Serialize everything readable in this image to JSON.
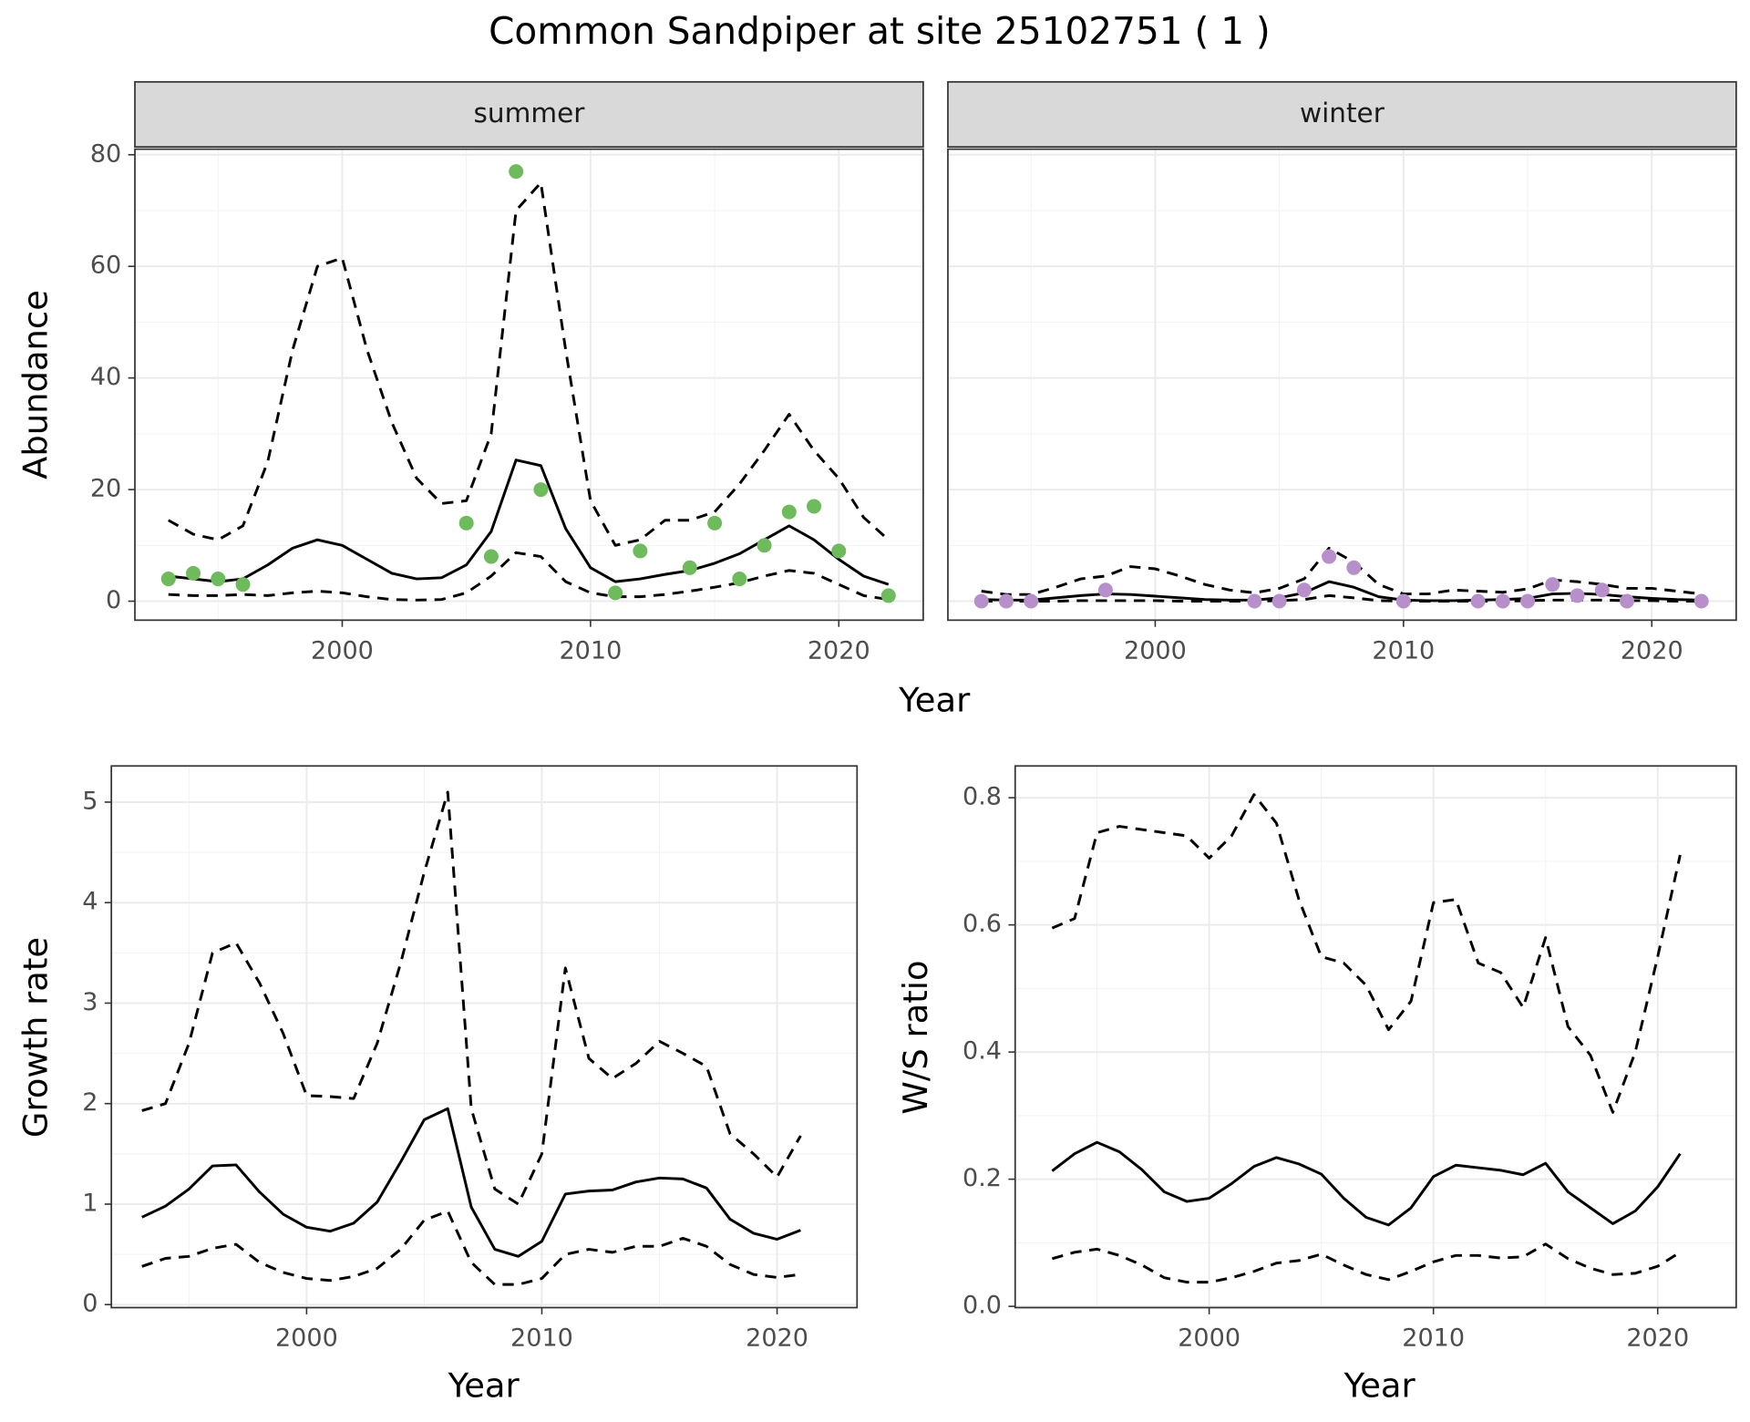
{
  "title": "Common Sandpiper at site 25102751 ( 1 )",
  "chart_data": [
    {
      "type": "line",
      "strip": "summer",
      "x_label": "Year",
      "y_label": "Abundance",
      "xlim": [
        1991.65,
        2023.4
      ],
      "ylim": [
        -3.4,
        81
      ],
      "xticks": [
        2000,
        2010,
        2020
      ],
      "yticks": [
        0,
        20,
        40,
        60,
        80
      ],
      "y_tick_labels": true,
      "grid": true,
      "minor_grid": true,
      "x": [
        1993,
        1994,
        1995,
        1996,
        1997,
        1998,
        1999,
        2000,
        2001,
        2002,
        2003,
        2004,
        2005,
        2006,
        2007,
        2008,
        2009,
        2010,
        2011,
        2012,
        2013,
        2014,
        2015,
        2016,
        2017,
        2018,
        2019,
        2020,
        2021,
        2022
      ],
      "series": [
        {
          "mark": "line",
          "linestyle": "dashed",
          "color": "#000000",
          "values": [
            14.5,
            12,
            11,
            13.5,
            25,
            45,
            60,
            61.5,
            45,
            32,
            22,
            17.5,
            18,
            30,
            70,
            75,
            45,
            18,
            10,
            11,
            14.5,
            14.5,
            16,
            21,
            27,
            33.5,
            27,
            22,
            15,
            11
          ]
        },
        {
          "mark": "line",
          "linestyle": "solid",
          "color": "#000000",
          "values": [
            4.5,
            4,
            3.5,
            4,
            6.5,
            9.5,
            11,
            10,
            7.5,
            5,
            4,
            4.2,
            6.5,
            12.5,
            25.3,
            24.3,
            13,
            6,
            3.5,
            4,
            4.8,
            5.5,
            6.8,
            8.5,
            11,
            13.5,
            11,
            7.5,
            4.5,
            3
          ]
        },
        {
          "mark": "line",
          "linestyle": "dashed",
          "color": "#000000",
          "values": [
            1.2,
            1,
            1,
            1.2,
            1,
            1.5,
            1.8,
            1.5,
            0.8,
            0.3,
            0.2,
            0.3,
            1.5,
            4.5,
            8.7,
            8,
            3.5,
            1.5,
            0.8,
            0.8,
            1.2,
            1.8,
            2.5,
            3.3,
            4.5,
            5.5,
            5,
            3,
            1,
            0.3
          ]
        },
        {
          "mark": "point",
          "color": "#6dbb5a",
          "x": [
            1993,
            1994,
            1995,
            1996,
            2005,
            2006,
            2007,
            2008,
            2011,
            2012,
            2014,
            2015,
            2016,
            2017,
            2018,
            2019,
            2020,
            2022
          ],
          "values": [
            4,
            5,
            4,
            3,
            14,
            8,
            77,
            20,
            1.5,
            9,
            6,
            14,
            4,
            10,
            16,
            17,
            9,
            1
          ]
        }
      ]
    },
    {
      "type": "line",
      "strip": "winter",
      "xlim": [
        1991.65,
        2023.4
      ],
      "ylim": [
        -3.4,
        81
      ],
      "xticks": [
        2000,
        2010,
        2020
      ],
      "yticks": [
        0,
        20,
        40,
        60,
        80
      ],
      "y_tick_labels": false,
      "grid": true,
      "minor_grid": true,
      "x": [
        1993,
        1994,
        1995,
        1996,
        1997,
        1998,
        1999,
        2000,
        2001,
        2002,
        2003,
        2004,
        2005,
        2006,
        2007,
        2008,
        2009,
        2010,
        2011,
        2012,
        2013,
        2014,
        2015,
        2016,
        2017,
        2018,
        2019,
        2020,
        2021,
        2022
      ],
      "series": [
        {
          "mark": "line",
          "linestyle": "dashed",
          "color": "#000000",
          "values": [
            1.8,
            1.2,
            1.2,
            2.5,
            4,
            4.5,
            6.2,
            5.8,
            4.5,
            3,
            2,
            1.5,
            2.3,
            4,
            9.5,
            7,
            3,
            1.3,
            1.3,
            2,
            1.8,
            1.6,
            2.2,
            3.8,
            3.5,
            3,
            2.3,
            2.3,
            1.8,
            1.3
          ]
        },
        {
          "mark": "line",
          "linestyle": "solid",
          "color": "#000000",
          "values": [
            0.3,
            0.2,
            0.2,
            0.6,
            1,
            1.3,
            1.2,
            0.9,
            0.6,
            0.3,
            0.2,
            0.2,
            0.6,
            1.5,
            3.5,
            2.5,
            0.8,
            0.2,
            0.1,
            0.1,
            0.2,
            0.3,
            0.5,
            1.3,
            1.4,
            1.2,
            0.8,
            0.5,
            0.3,
            0.2
          ]
        },
        {
          "mark": "line",
          "linestyle": "dashed",
          "color": "#000000",
          "values": [
            0,
            0,
            0,
            0,
            0.1,
            0.1,
            0.1,
            0.1,
            0,
            0,
            0,
            0,
            0.1,
            0.3,
            1,
            0.6,
            0.1,
            0,
            0,
            0,
            0,
            0,
            0.1,
            0.2,
            0.2,
            0.2,
            0.1,
            0.1,
            0,
            0
          ]
        },
        {
          "mark": "point",
          "color": "#b78fcb",
          "x": [
            1993,
            1994,
            1995,
            1998,
            2004,
            2005,
            2006,
            2007,
            2008,
            2010,
            2013,
            2014,
            2015,
            2016,
            2017,
            2018,
            2019,
            2022
          ],
          "values": [
            0,
            0,
            0,
            2,
            0,
            0,
            2,
            8,
            6,
            0,
            0,
            0,
            0,
            3,
            1,
            2,
            0,
            0
          ]
        }
      ]
    },
    {
      "type": "line",
      "x_label": "Year",
      "y_label": "Growth rate",
      "xlim": [
        1991.7,
        2023.4
      ],
      "ylim": [
        -0.03,
        5.36
      ],
      "xticks": [
        2000,
        2010,
        2020
      ],
      "yticks": [
        0,
        1,
        2,
        3,
        4,
        5
      ],
      "y_tick_labels": true,
      "grid": true,
      "minor_grid": true,
      "x": [
        1993,
        1994,
        1995,
        1996,
        1997,
        1998,
        1999,
        2000,
        2001,
        2002,
        2003,
        2004,
        2005,
        2006,
        2007,
        2008,
        2009,
        2010,
        2011,
        2012,
        2013,
        2014,
        2015,
        2016,
        2017,
        2018,
        2019,
        2020,
        2021
      ],
      "series": [
        {
          "mark": "line",
          "linestyle": "dashed",
          "color": "#000000",
          "values": [
            1.93,
            2,
            2.6,
            3.5,
            3.6,
            3.2,
            2.7,
            2.08,
            2.07,
            2.05,
            2.6,
            3.4,
            4.3,
            5.1,
            1.95,
            1.15,
            1,
            1.5,
            3.35,
            2.45,
            2.25,
            2.4,
            2.62,
            2.5,
            2.37,
            1.7,
            1.5,
            1.27,
            1.68
          ]
        },
        {
          "mark": "line",
          "linestyle": "solid",
          "color": "#000000",
          "values": [
            0.87,
            0.98,
            1.15,
            1.38,
            1.39,
            1.12,
            0.9,
            0.77,
            0.73,
            0.81,
            1.02,
            1.42,
            1.84,
            1.95,
            0.97,
            0.55,
            0.48,
            0.63,
            1.1,
            1.13,
            1.14,
            1.22,
            1.26,
            1.25,
            1.16,
            0.85,
            0.71,
            0.65,
            0.74
          ]
        },
        {
          "mark": "line",
          "linestyle": "dashed",
          "color": "#000000",
          "values": [
            0.38,
            0.46,
            0.48,
            0.56,
            0.6,
            0.42,
            0.32,
            0.26,
            0.24,
            0.28,
            0.36,
            0.55,
            0.84,
            0.93,
            0.42,
            0.2,
            0.2,
            0.26,
            0.5,
            0.55,
            0.52,
            0.58,
            0.58,
            0.66,
            0.58,
            0.4,
            0.3,
            0.27,
            0.3
          ]
        }
      ]
    },
    {
      "type": "line",
      "x_label": "Year",
      "y_label": "W/S ratio",
      "xlim": [
        1991.35,
        2023.5
      ],
      "ylim": [
        -0.002,
        0.85
      ],
      "xticks": [
        2000,
        2010,
        2020
      ],
      "yticks": [
        {
          "value": 0,
          "label": "0.0"
        },
        0.2,
        0.4,
        0.6,
        0.8
      ],
      "y_tick_labels": true,
      "grid": true,
      "minor_grid": true,
      "x": [
        1993,
        1994,
        1995,
        1996,
        1997,
        1998,
        1999,
        2000,
        2001,
        2002,
        2003,
        2004,
        2005,
        2006,
        2007,
        2008,
        2009,
        2010,
        2011,
        2012,
        2013,
        2014,
        2015,
        2016,
        2017,
        2018,
        2019,
        2020,
        2021
      ],
      "series": [
        {
          "mark": "line",
          "linestyle": "dashed",
          "color": "#000000",
          "values": [
            0.595,
            0.61,
            0.745,
            0.755,
            0.75,
            0.745,
            0.74,
            0.705,
            0.74,
            0.805,
            0.76,
            0.64,
            0.55,
            0.54,
            0.505,
            0.435,
            0.48,
            0.635,
            0.64,
            0.54,
            0.525,
            0.47,
            0.58,
            0.44,
            0.395,
            0.305,
            0.4,
            0.55,
            0.71
          ]
        },
        {
          "mark": "line",
          "linestyle": "solid",
          "color": "#000000",
          "values": [
            0.213,
            0.24,
            0.258,
            0.243,
            0.215,
            0.18,
            0.165,
            0.17,
            0.193,
            0.22,
            0.234,
            0.224,
            0.208,
            0.17,
            0.14,
            0.128,
            0.155,
            0.204,
            0.222,
            0.218,
            0.214,
            0.207,
            0.225,
            0.18,
            0.155,
            0.13,
            0.15,
            0.188,
            0.24
          ]
        },
        {
          "mark": "line",
          "linestyle": "dashed",
          "color": "#000000",
          "values": [
            0.075,
            0.085,
            0.09,
            0.08,
            0.065,
            0.045,
            0.038,
            0.038,
            0.045,
            0.055,
            0.068,
            0.072,
            0.082,
            0.065,
            0.05,
            0.042,
            0.055,
            0.07,
            0.08,
            0.08,
            0.076,
            0.078,
            0.098,
            0.075,
            0.06,
            0.05,
            0.052,
            0.063,
            0.085
          ]
        }
      ]
    }
  ]
}
